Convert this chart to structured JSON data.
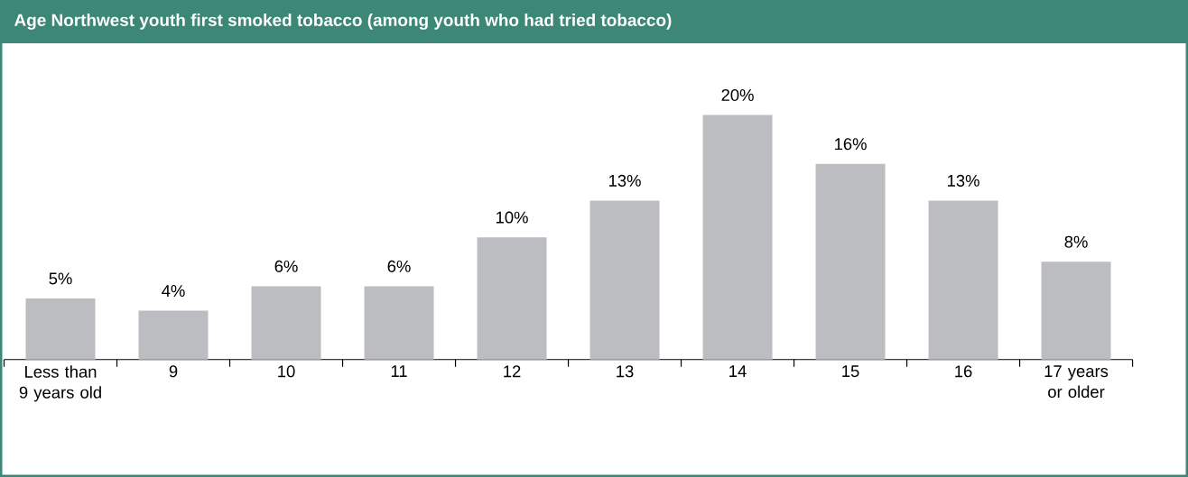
{
  "chart_data": {
    "type": "bar",
    "title": "Age Northwest youth first smoked tobacco (among youth who had tried tobacco)",
    "categories": [
      "Less than 9 years old",
      "9",
      "10",
      "11",
      "12",
      "13",
      "14",
      "15",
      "16",
      "17 years or older"
    ],
    "values": [
      5,
      4,
      6,
      6,
      10,
      13,
      20,
      16,
      13,
      8
    ],
    "value_labels": [
      "5%",
      "4%",
      "6%",
      "6%",
      "10%",
      "13%",
      "20%",
      "16%",
      "13%",
      "8%"
    ],
    "color": "#bcbdc0"
  }
}
